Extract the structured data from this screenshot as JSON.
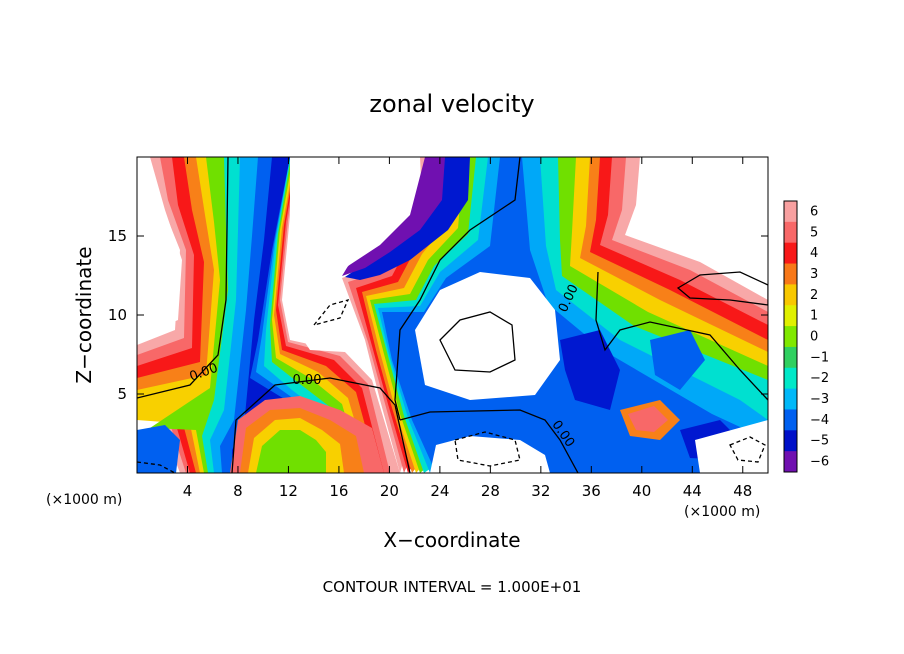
{
  "chart_data": {
    "type": "heatmap",
    "title": "zonal velocity",
    "xlabel": "X−coordinate",
    "ylabel": "Z−coordinate",
    "x_unit_label": "(×1000 m)",
    "z_unit_label": "(×1000 m)",
    "footer": "CONTOUR INTERVAL = 1.000E+01",
    "xlim": [
      0,
      50
    ],
    "ylim": [
      0,
      20
    ],
    "x_ticks": [
      "4",
      "8",
      "12",
      "16",
      "20",
      "24",
      "28",
      "32",
      "36",
      "40",
      "44",
      "48"
    ],
    "x_tick_values": [
      4,
      8,
      12,
      16,
      20,
      24,
      28,
      32,
      36,
      40,
      44,
      48
    ],
    "y_ticks": [
      "5",
      "10",
      "15"
    ],
    "y_tick_values": [
      5,
      10,
      15
    ],
    "colorbar": {
      "labels": [
        "6",
        "5",
        "4",
        "3",
        "2",
        "1",
        "0",
        "−1",
        "−2",
        "−3",
        "−4",
        "−5",
        "−6"
      ],
      "values": [
        6,
        5,
        4,
        3,
        2,
        1,
        0,
        -1,
        -2,
        -3,
        -4,
        -5,
        -6
      ],
      "colors": [
        "#f8a0a0",
        "#f86868",
        "#f81818",
        "#f87818",
        "#f8c800",
        "#e0f000",
        "#80e800",
        "#30d060",
        "#00e8c8",
        "#00b8f8",
        "#0060f0",
        "#0010c8",
        "#7010b0"
      ]
    },
    "contour_labels": [
      "0.00",
      "0.00",
      "0.00",
      "0.00"
    ]
  }
}
